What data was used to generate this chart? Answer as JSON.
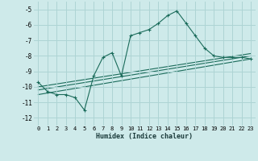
{
  "xlabel": "Humidex (Indice chaleur)",
  "bg_color": "#ceeaea",
  "grid_color": "#aed4d4",
  "line_color": "#1a6b5a",
  "xlim": [
    -0.5,
    23.5
  ],
  "ylim": [
    -12.5,
    -4.5
  ],
  "yticks": [
    -12,
    -11,
    -10,
    -9,
    -8,
    -7,
    -6,
    -5
  ],
  "xticks": [
    0,
    1,
    2,
    3,
    4,
    5,
    6,
    7,
    8,
    9,
    10,
    11,
    12,
    13,
    14,
    15,
    16,
    17,
    18,
    19,
    20,
    21,
    22,
    23
  ],
  "series": [
    {
      "x": [
        0,
        1,
        2,
        3,
        4,
        5,
        6,
        7,
        8,
        9,
        10,
        11,
        12,
        13,
        14,
        15,
        16,
        17,
        18,
        19,
        20,
        21,
        22,
        23
      ],
      "y": [
        -9.7,
        -10.3,
        -10.5,
        -10.5,
        -10.7,
        -11.5,
        -9.3,
        -8.1,
        -7.8,
        -9.3,
        -6.7,
        -6.5,
        -6.3,
        -5.9,
        -5.4,
        -5.1,
        -5.9,
        -6.7,
        -7.5,
        -8.0,
        -8.1,
        -8.1,
        -8.1,
        -8.2
      ],
      "marker": true
    },
    {
      "x": [
        0,
        23
      ],
      "y": [
        -10.2,
        -8.0
      ],
      "marker": false
    },
    {
      "x": [
        0,
        23
      ],
      "y": [
        -10.5,
        -8.2
      ],
      "marker": false
    },
    {
      "x": [
        0,
        23
      ],
      "y": [
        -10.0,
        -7.85
      ],
      "marker": false
    }
  ]
}
